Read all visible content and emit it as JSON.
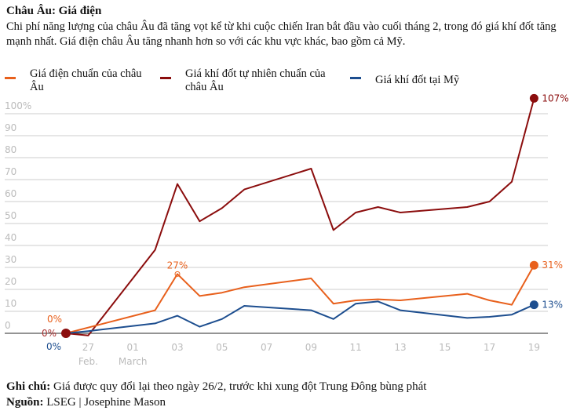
{
  "title": "Châu Âu: Giá điện",
  "subtitle": "Chi phí năng lượng của châu Âu đã tăng vọt kể từ khi cuộc chiến Iran bắt đầu vào cuối tháng 2, trong đó giá khí đốt tăng mạnh nhất. Giá điện châu Âu tăng nhanh hơn so với các khu vực khác, bao gồm cả Mỹ.",
  "note_label": "Ghi chú:",
  "note": " Giá được quy đổi lại theo ngày 26/2, trước khi xung đột Trung Đông bùng phát",
  "source_label": "Nguồn:",
  "source": " LSEG | Josephine Mason",
  "chart_data": {
    "type": "line",
    "ylim": [
      0,
      100
    ],
    "yticks": [
      "0",
      "10",
      "20",
      "30",
      "40",
      "50",
      "60",
      "70",
      "80",
      "90",
      "100%"
    ],
    "xticks": [
      {
        "idx": 1,
        "label": "27",
        "sub": "Feb."
      },
      {
        "idx": 3,
        "label": "01",
        "sub": "March"
      },
      {
        "idx": 5,
        "label": "03"
      },
      {
        "idx": 7,
        "label": "05"
      },
      {
        "idx": 9,
        "label": "07"
      },
      {
        "idx": 11,
        "label": "09"
      },
      {
        "idx": 13,
        "label": "11"
      },
      {
        "idx": 15,
        "label": "13"
      },
      {
        "idx": 17,
        "label": "15"
      },
      {
        "idx": 19,
        "label": "17"
      },
      {
        "idx": 21,
        "label": "19"
      }
    ],
    "x_note": "x = days since Feb 26",
    "series": [
      {
        "name": "Giá điện chuẩn của châu Âu",
        "color": "#e8601c",
        "start_label": "0%",
        "end_label": "31%",
        "peak_label": "27%",
        "x": [
          0,
          4,
          5,
          6,
          7,
          8,
          11,
          12,
          13,
          14,
          15,
          18,
          19,
          20,
          21
        ],
        "y": [
          0,
          10.5,
          27,
          17,
          18.5,
          21,
          25,
          13.5,
          15,
          15.5,
          15,
          18,
          15,
          13,
          31
        ]
      },
      {
        "name": "Giá khí đốt tự nhiên chuẩn của châu Âu",
        "color": "#8b0d0d",
        "start_label": "0%",
        "end_label": "107%",
        "x": [
          0,
          1,
          4,
          5,
          6,
          7,
          8,
          11,
          12,
          13,
          14,
          15,
          18,
          19,
          20,
          21
        ],
        "y": [
          0,
          -1,
          38,
          68,
          51,
          57,
          65.5,
          75,
          47,
          55,
          57.5,
          55,
          57.5,
          60,
          69,
          107
        ]
      },
      {
        "name": "Giá khí đốt tại Mỹ",
        "color": "#1d4e8f",
        "start_label": "0%",
        "end_label": "13%",
        "x": [
          0,
          1,
          4,
          5,
          6,
          7,
          8,
          11,
          12,
          13,
          14,
          15,
          18,
          19,
          20,
          21
        ],
        "y": [
          0,
          1,
          4.5,
          8,
          3,
          6.5,
          12.5,
          10.5,
          6.5,
          13.5,
          14.5,
          10.5,
          7,
          7.5,
          8.5,
          13
        ]
      }
    ]
  }
}
